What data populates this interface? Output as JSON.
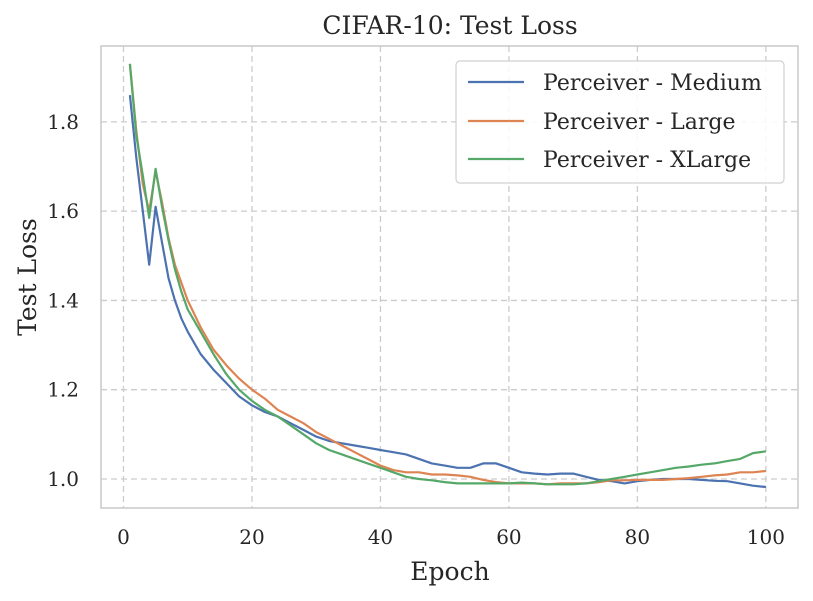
{
  "chart_data": {
    "type": "line",
    "title": "CIFAR-10: Test Loss",
    "xlabel": "Epoch",
    "ylabel": "Test Loss",
    "xlim": [
      -3.5,
      105
    ],
    "ylim": [
      0.935,
      1.97
    ],
    "xticks": [
      0,
      20,
      40,
      60,
      80,
      100
    ],
    "yticks": [
      1.0,
      1.2,
      1.4,
      1.6,
      1.8
    ],
    "xtick_labels": [
      "0",
      "20",
      "40",
      "60",
      "80",
      "100"
    ],
    "ytick_labels": [
      "1.0",
      "1.2",
      "1.4",
      "1.6",
      "1.8"
    ],
    "grid": true,
    "legend_position": "top-right",
    "series": [
      {
        "name": "Perceiver - Medium",
        "color": "#4c72b0",
        "points": [
          [
            1,
            1.86
          ],
          [
            2,
            1.72
          ],
          [
            3,
            1.6
          ],
          [
            4,
            1.48
          ],
          [
            5,
            1.61
          ],
          [
            6,
            1.53
          ],
          [
            7,
            1.45
          ],
          [
            8,
            1.4
          ],
          [
            9,
            1.36
          ],
          [
            10,
            1.33
          ],
          [
            12,
            1.28
          ],
          [
            14,
            1.245
          ],
          [
            16,
            1.215
          ],
          [
            18,
            1.185
          ],
          [
            20,
            1.165
          ],
          [
            22,
            1.15
          ],
          [
            24,
            1.14
          ],
          [
            26,
            1.125
          ],
          [
            28,
            1.11
          ],
          [
            30,
            1.095
          ],
          [
            32,
            1.085
          ],
          [
            34,
            1.08
          ],
          [
            36,
            1.075
          ],
          [
            38,
            1.07
          ],
          [
            40,
            1.065
          ],
          [
            42,
            1.06
          ],
          [
            44,
            1.055
          ],
          [
            46,
            1.045
          ],
          [
            48,
            1.035
          ],
          [
            50,
            1.03
          ],
          [
            52,
            1.025
          ],
          [
            54,
            1.025
          ],
          [
            56,
            1.035
          ],
          [
            58,
            1.035
          ],
          [
            60,
            1.025
          ],
          [
            62,
            1.015
          ],
          [
            64,
            1.012
          ],
          [
            66,
            1.01
          ],
          [
            68,
            1.012
          ],
          [
            70,
            1.012
          ],
          [
            72,
            1.005
          ],
          [
            74,
            0.998
          ],
          [
            76,
            0.995
          ],
          [
            78,
            0.99
          ],
          [
            80,
            0.995
          ],
          [
            82,
            0.998
          ],
          [
            84,
            1.0
          ],
          [
            86,
            1.0
          ],
          [
            88,
            1.0
          ],
          [
            90,
            0.998
          ],
          [
            92,
            0.996
          ],
          [
            94,
            0.995
          ],
          [
            96,
            0.99
          ],
          [
            98,
            0.985
          ],
          [
            100,
            0.982
          ]
        ]
      },
      {
        "name": "Perceiver - Large",
        "color": "#dd8452",
        "points": [
          [
            1,
            1.93
          ],
          [
            2,
            1.78
          ],
          [
            3,
            1.66
          ],
          [
            4,
            1.6
          ],
          [
            5,
            1.69
          ],
          [
            6,
            1.62
          ],
          [
            7,
            1.54
          ],
          [
            8,
            1.48
          ],
          [
            9,
            1.44
          ],
          [
            10,
            1.4
          ],
          [
            12,
            1.34
          ],
          [
            14,
            1.29
          ],
          [
            16,
            1.255
          ],
          [
            18,
            1.225
          ],
          [
            20,
            1.2
          ],
          [
            22,
            1.18
          ],
          [
            24,
            1.155
          ],
          [
            26,
            1.14
          ],
          [
            28,
            1.125
          ],
          [
            30,
            1.105
          ],
          [
            32,
            1.09
          ],
          [
            34,
            1.075
          ],
          [
            36,
            1.06
          ],
          [
            38,
            1.045
          ],
          [
            40,
            1.03
          ],
          [
            42,
            1.02
          ],
          [
            44,
            1.015
          ],
          [
            46,
            1.015
          ],
          [
            48,
            1.01
          ],
          [
            50,
            1.01
          ],
          [
            52,
            1.008
          ],
          [
            54,
            1.005
          ],
          [
            56,
            0.998
          ],
          [
            58,
            0.993
          ],
          [
            60,
            0.99
          ],
          [
            62,
            0.99
          ],
          [
            64,
            0.99
          ],
          [
            66,
            0.988
          ],
          [
            68,
            0.99
          ],
          [
            70,
            0.99
          ],
          [
            72,
            0.99
          ],
          [
            74,
            0.993
          ],
          [
            76,
            0.997
          ],
          [
            78,
            0.997
          ],
          [
            80,
            0.998
          ],
          [
            82,
            0.998
          ],
          [
            84,
            0.998
          ],
          [
            86,
            1.0
          ],
          [
            88,
            1.002
          ],
          [
            90,
            1.005
          ],
          [
            92,
            1.008
          ],
          [
            94,
            1.01
          ],
          [
            96,
            1.015
          ],
          [
            98,
            1.015
          ],
          [
            100,
            1.018
          ]
        ]
      },
      {
        "name": "Perceiver - XLarge",
        "color": "#55a868",
        "points": [
          [
            1,
            1.93
          ],
          [
            2,
            1.77
          ],
          [
            3,
            1.68
          ],
          [
            4,
            1.585
          ],
          [
            5,
            1.695
          ],
          [
            6,
            1.61
          ],
          [
            7,
            1.535
          ],
          [
            8,
            1.47
          ],
          [
            9,
            1.42
          ],
          [
            10,
            1.38
          ],
          [
            12,
            1.33
          ],
          [
            14,
            1.28
          ],
          [
            16,
            1.235
          ],
          [
            18,
            1.2
          ],
          [
            20,
            1.175
          ],
          [
            22,
            1.155
          ],
          [
            24,
            1.14
          ],
          [
            26,
            1.12
          ],
          [
            28,
            1.1
          ],
          [
            30,
            1.08
          ],
          [
            32,
            1.065
          ],
          [
            34,
            1.055
          ],
          [
            36,
            1.045
          ],
          [
            38,
            1.035
          ],
          [
            40,
            1.025
          ],
          [
            42,
            1.015
          ],
          [
            44,
            1.005
          ],
          [
            46,
            1.0
          ],
          [
            48,
            0.997
          ],
          [
            50,
            0.993
          ],
          [
            52,
            0.99
          ],
          [
            54,
            0.99
          ],
          [
            56,
            0.99
          ],
          [
            58,
            0.99
          ],
          [
            60,
            0.99
          ],
          [
            62,
            0.992
          ],
          [
            64,
            0.99
          ],
          [
            66,
            0.988
          ],
          [
            68,
            0.988
          ],
          [
            70,
            0.988
          ],
          [
            72,
            0.99
          ],
          [
            74,
            0.995
          ],
          [
            76,
            1.0
          ],
          [
            78,
            1.005
          ],
          [
            80,
            1.01
          ],
          [
            82,
            1.015
          ],
          [
            84,
            1.02
          ],
          [
            86,
            1.025
          ],
          [
            88,
            1.028
          ],
          [
            90,
            1.032
          ],
          [
            92,
            1.035
          ],
          [
            94,
            1.04
          ],
          [
            96,
            1.045
          ],
          [
            98,
            1.058
          ],
          [
            100,
            1.062
          ]
        ]
      }
    ]
  }
}
